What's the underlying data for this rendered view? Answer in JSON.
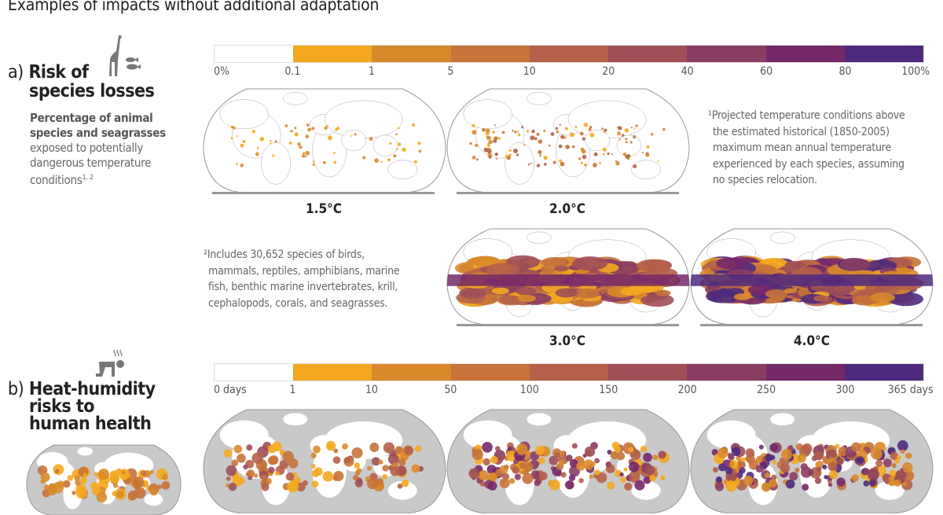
{
  "title": "Examples of impacts without additional adaptation",
  "colors": [
    "#ffffff",
    "#f4a81f",
    "#d9892a",
    "#c7733a",
    "#b5604a",
    "#a04f56",
    "#8a3d63",
    "#75286a",
    "#4e2a7e"
  ],
  "land_gray": "#c9c9c9",
  "section_a": {
    "prefix": "a)",
    "heading_line1": "Risk of",
    "heading_line2": "species losses",
    "subtitle_bold1": "Percentage of animal",
    "subtitle_bold2": "species and seagrasses",
    "subtitle1": "exposed to potentially",
    "subtitle2": "dangerous temperature",
    "subtitle3": "conditions",
    "subtitle_sup": "1, 2",
    "icon": "giraffe-fish-icon",
    "legend_ticks": [
      "0%",
      "0.1",
      "1",
      "5",
      "10",
      "20",
      "40",
      "60",
      "80",
      "100%"
    ],
    "maps": [
      "1.5°C",
      "2.0°C",
      "3.0°C",
      "4.0°C"
    ],
    "note1": [
      "¹Projected temperature conditions above",
      "the estimated historical (1850-2005)",
      "maximum mean annual temperature",
      "experienced by each species, assuming",
      "no species relocation."
    ],
    "note2": [
      "²Includes 30,652 species of birds,",
      "mammals, reptiles, amphibians, marine",
      "fish, benthic marine invertebrates, krill,",
      "cephalopods, corals, and seagrasses."
    ]
  },
  "section_b": {
    "prefix": "b)",
    "heading_line1": "Heat-humidity",
    "heading_line2": "risks to",
    "heading_line3": "human health",
    "icon": "heat-stressed-person-icon",
    "legend_ticks": [
      "0 days",
      "1",
      "10",
      "50",
      "100",
      "150",
      "200",
      "250",
      "300",
      "365 days"
    ]
  }
}
